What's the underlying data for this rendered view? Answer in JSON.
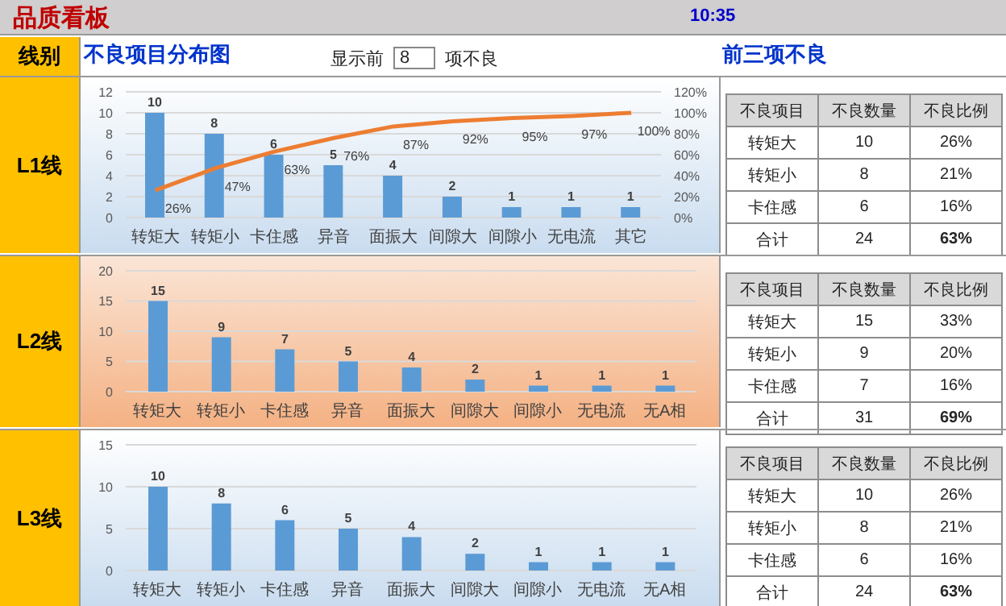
{
  "chart_data": [
    {
      "type": "bar",
      "title": "不良项目分布图",
      "ylabel": "L1线",
      "annotations": [
        "品质看板",
        "10:35",
        "线别",
        "显示前",
        "8",
        "项不良"
      ],
      "categories": [
        "转矩大",
        "转矩小",
        "卡住感",
        "异音",
        "面振大",
        "间隙大",
        "间隙小",
        "无电流",
        "其它"
      ],
      "series": [
        {
          "type": "bar",
          "color": "#5b9bd5",
          "values": [
            10,
            8,
            6,
            5,
            4,
            2,
            1,
            1,
            1
          ]
        },
        {
          "type": "line",
          "axis": "y2",
          "color": "#ed7d31",
          "values": [
            26,
            47,
            63,
            76,
            87,
            92,
            95,
            97,
            100
          ],
          "value_labels": [
            "26%",
            "47%",
            "63%",
            "76%",
            "87%",
            "92%",
            "95%",
            "97%",
            "100%"
          ]
        }
      ],
      "ylim": [
        0,
        12
      ],
      "yticks": [
        0,
        2,
        4,
        6,
        8,
        10,
        12
      ],
      "y2lim": [
        0,
        120
      ],
      "y2ticks": [
        {
          "value": 0,
          "label": "0%"
        },
        {
          "value": 20,
          "label": "20%"
        },
        {
          "value": 40,
          "label": "40%"
        },
        {
          "value": 60,
          "label": "60%"
        },
        {
          "value": 80,
          "label": "80%"
        },
        {
          "value": 100,
          "label": "100%"
        },
        {
          "value": 120,
          "label": "120%"
        }
      ],
      "grid": "y",
      "data_labels": true,
      "marker": "none"
    },
    {
      "type": "other",
      "title": "前三项不良",
      "xlabel": "不良项目",
      "categories": [
        "转矩大",
        "转矩小",
        "卡住感",
        "合计"
      ],
      "data_labels": true,
      "series": [
        {
          "name": "不良数量",
          "values": [
            10,
            8,
            6,
            24
          ]
        },
        {
          "name": "不良比例",
          "values": [
            26,
            21,
            16,
            63
          ],
          "value_labels": [
            "26%",
            "21%",
            "16%",
            "63%"
          ]
        }
      ]
    },
    {
      "type": "bar",
      "ylabel": "L2线",
      "categories": [
        "转矩大",
        "转矩小",
        "卡住感",
        "异音",
        "面振大",
        "间隙大",
        "间隙小",
        "无电流",
        "无A相"
      ],
      "series": [
        {
          "type": "bar",
          "color": "#5b9bd5",
          "values": [
            15,
            9,
            7,
            5,
            4,
            2,
            1,
            1,
            1
          ]
        }
      ],
      "ylim": [
        0,
        20
      ],
      "yticks": [
        0,
        5,
        10,
        15,
        20
      ],
      "grid": "y",
      "data_labels": true
    },
    {
      "type": "other",
      "xlabel": "不良项目",
      "categories": [
        "转矩大",
        "转矩小",
        "卡住感",
        "合计"
      ],
      "data_labels": true,
      "series": [
        {
          "name": "不良数量",
          "values": [
            15,
            9,
            7,
            31
          ]
        },
        {
          "name": "不良比例",
          "values": [
            33,
            20,
            16,
            69
          ],
          "value_labels": [
            "33%",
            "20%",
            "16%",
            "69%"
          ]
        }
      ]
    },
    {
      "type": "bar",
      "ylabel": "L3线",
      "categories": [
        "转矩大",
        "转矩小",
        "卡住感",
        "异音",
        "面振大",
        "间隙大",
        "间隙小",
        "无电流",
        "无A相"
      ],
      "series": [
        {
          "type": "bar",
          "color": "#5b9bd5",
          "values": [
            10,
            8,
            6,
            5,
            4,
            2,
            1,
            1,
            1
          ]
        }
      ],
      "ylim": [
        0,
        15
      ],
      "yticks": [
        0,
        5,
        10,
        15
      ],
      "grid": "y",
      "data_labels": true
    },
    {
      "type": "other",
      "xlabel": "不良项目",
      "categories": [
        "转矩大",
        "转矩小",
        "卡住感",
        "合计"
      ],
      "data_labels": true,
      "series": [
        {
          "name": "不良数量",
          "values": [
            10,
            8,
            6,
            24
          ]
        },
        {
          "name": "不良比例",
          "values": [
            26,
            21,
            16,
            63
          ],
          "value_labels": [
            "26%",
            "21%",
            "16%",
            "63%"
          ]
        }
      ]
    }
  ]
}
